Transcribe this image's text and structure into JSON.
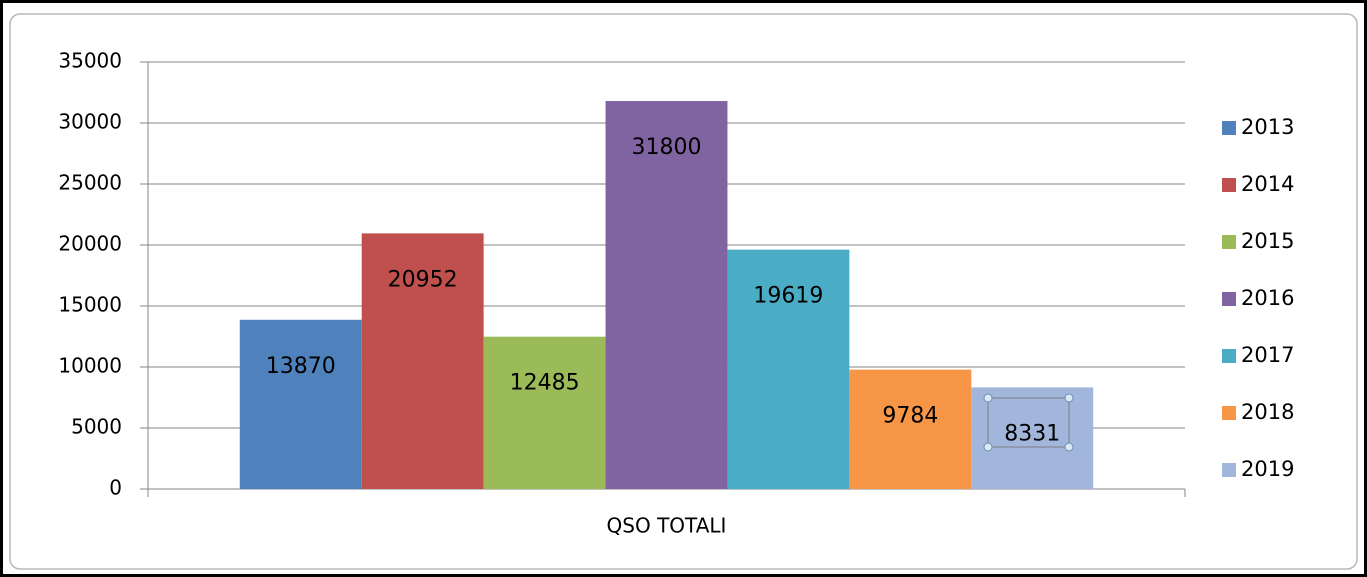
{
  "chart_data": {
    "type": "bar",
    "categories": [
      "QSO TOTALI"
    ],
    "series": [
      {
        "name": "2013",
        "color": "#4f81bd",
        "values": [
          13870
        ]
      },
      {
        "name": "2014",
        "color": "#c0504d",
        "values": [
          20952
        ]
      },
      {
        "name": "2015",
        "color": "#9bbb59",
        "values": [
          12485
        ]
      },
      {
        "name": "2016",
        "color": "#8064a2",
        "values": [
          31800
        ]
      },
      {
        "name": "2017",
        "color": "#4bacc6",
        "values": [
          19619
        ]
      },
      {
        "name": "2018",
        "color": "#f79646",
        "values": [
          9784
        ]
      },
      {
        "name": "2019",
        "color": "#a2b6dc",
        "values": [
          8331
        ]
      }
    ],
    "ylim": [
      0,
      35000
    ],
    "yticks": [
      0,
      5000,
      10000,
      15000,
      20000,
      25000,
      30000,
      35000
    ],
    "grid": true,
    "legend": "right",
    "data_labels": true
  }
}
